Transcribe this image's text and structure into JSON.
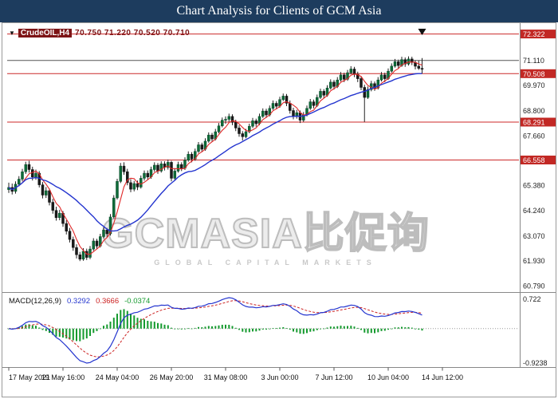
{
  "title_bar": {
    "title": "Chart Analysis for Clients of GCM Asia"
  },
  "chart_header": {
    "symbol": "CrudeOIL,H4",
    "ohlc": "70.750 71.220 70.520 70.710"
  },
  "watermark": {
    "text": "GCMASIA比促询",
    "subtext": "GLOBAL CAPITAL MARKETS"
  },
  "macd_panel": {
    "label": "MACD(12,26,9)",
    "values": [
      "0.3292",
      "0.3666",
      "-0.0374"
    ],
    "scale_top": "0.722",
    "scale_bottom": "-0.9238"
  },
  "chart_data": {
    "type": "candlestick",
    "symbol": "CrudeOIL",
    "timeframe": "H4",
    "y_range": [
      60.55,
      72.6
    ],
    "y_ticks": [
      71.11,
      69.97,
      68.8,
      67.66,
      65.38,
      64.24,
      63.07,
      61.93,
      60.79
    ],
    "resistance_support_levels": [
      72.322,
      70.508,
      68.291,
      66.558
    ],
    "gray_level": 71.11,
    "x_ticks": [
      {
        "i": 0,
        "label": "17 May 2021"
      },
      {
        "i": 16,
        "label": "19 May 16:00"
      },
      {
        "i": 32,
        "label": "24 May 04:00"
      },
      {
        "i": 48,
        "label": "26 May 20:00"
      },
      {
        "i": 64,
        "label": "31 May 08:00"
      },
      {
        "i": 80,
        "label": "3 Jun 00:00"
      },
      {
        "i": 96,
        "label": "7 Jun 12:00"
      },
      {
        "i": 112,
        "label": "10 Jun 04:00"
      },
      {
        "i": 128,
        "label": "14 Jun 12:00"
      }
    ],
    "candles": [
      [
        65.2,
        65.52,
        65.05,
        65.3
      ],
      [
        65.3,
        65.48,
        64.98,
        65.12
      ],
      [
        65.12,
        65.58,
        65.02,
        65.45
      ],
      [
        65.45,
        65.82,
        65.35,
        65.68
      ],
      [
        65.68,
        66.15,
        65.58,
        66.02
      ],
      [
        66.02,
        66.48,
        65.92,
        66.35
      ],
      [
        66.35,
        66.52,
        65.98,
        66.12
      ],
      [
        66.12,
        66.25,
        65.62,
        65.78
      ],
      [
        65.78,
        66.12,
        65.65,
        65.95
      ],
      [
        65.95,
        66.05,
        65.3,
        65.42
      ],
      [
        65.42,
        65.55,
        64.8,
        64.95
      ],
      [
        64.95,
        65.32,
        64.82,
        65.15
      ],
      [
        65.15,
        65.25,
        64.48,
        64.62
      ],
      [
        64.62,
        64.78,
        64.1,
        64.25
      ],
      [
        64.25,
        64.42,
        63.78,
        63.92
      ],
      [
        63.92,
        64.28,
        63.8,
        64.12
      ],
      [
        64.12,
        64.22,
        63.5,
        63.65
      ],
      [
        63.65,
        63.8,
        63.15,
        63.3
      ],
      [
        63.3,
        63.45,
        62.78,
        62.92
      ],
      [
        62.92,
        63.05,
        62.4,
        62.55
      ],
      [
        62.55,
        62.7,
        62.05,
        62.22
      ],
      [
        62.22,
        62.35,
        61.93,
        62.02
      ],
      [
        62.02,
        62.52,
        61.95,
        62.38
      ],
      [
        62.38,
        62.5,
        61.98,
        62.1
      ],
      [
        62.1,
        62.62,
        62.02,
        62.48
      ],
      [
        62.48,
        62.98,
        62.4,
        62.85
      ],
      [
        62.85,
        62.95,
        62.48,
        62.62
      ],
      [
        62.62,
        63.18,
        62.55,
        63.05
      ],
      [
        63.05,
        63.48,
        62.98,
        63.35
      ],
      [
        63.35,
        63.45,
        63.02,
        63.18
      ],
      [
        63.18,
        64.08,
        63.1,
        63.95
      ],
      [
        63.95,
        64.95,
        63.88,
        64.82
      ],
      [
        64.82,
        65.7,
        64.75,
        65.58
      ],
      [
        65.58,
        66.42,
        65.5,
        66.28
      ],
      [
        66.28,
        66.45,
        65.88,
        66.02
      ],
      [
        66.02,
        66.15,
        65.4,
        65.52
      ],
      [
        65.52,
        65.68,
        65.08,
        65.22
      ],
      [
        65.22,
        65.6,
        65.12,
        65.48
      ],
      [
        65.48,
        65.62,
        65.18,
        65.32
      ],
      [
        65.32,
        65.85,
        65.25,
        65.72
      ],
      [
        65.72,
        66.08,
        65.62,
        65.95
      ],
      [
        65.95,
        66.08,
        65.65,
        65.78
      ],
      [
        65.78,
        66.25,
        65.7,
        66.12
      ],
      [
        66.12,
        66.45,
        66.02,
        66.32
      ],
      [
        66.32,
        66.42,
        65.92,
        66.05
      ],
      [
        66.05,
        66.5,
        65.98,
        66.38
      ],
      [
        66.38,
        66.5,
        66.08,
        66.22
      ],
      [
        66.22,
        66.58,
        66.12,
        66.45
      ],
      [
        66.45,
        66.52,
        65.58,
        65.72
      ],
      [
        65.72,
        66.18,
        65.62,
        66.05
      ],
      [
        66.05,
        66.48,
        65.98,
        66.35
      ],
      [
        66.35,
        66.45,
        66.05,
        66.18
      ],
      [
        66.18,
        66.68,
        66.1,
        66.55
      ],
      [
        66.55,
        66.95,
        66.48,
        66.82
      ],
      [
        66.82,
        66.92,
        66.45,
        66.6
      ],
      [
        66.6,
        67.08,
        66.52,
        66.95
      ],
      [
        66.95,
        67.38,
        66.88,
        67.25
      ],
      [
        67.25,
        67.35,
        66.92,
        67.05
      ],
      [
        67.05,
        67.55,
        66.98,
        67.42
      ],
      [
        67.42,
        67.82,
        67.35,
        67.7
      ],
      [
        67.7,
        67.8,
        67.38,
        67.52
      ],
      [
        67.52,
        67.98,
        67.45,
        67.85
      ],
      [
        67.85,
        68.25,
        67.78,
        68.12
      ],
      [
        68.12,
        68.5,
        68.05,
        68.38
      ],
      [
        68.38,
        68.55,
        68.22,
        68.42
      ],
      [
        68.42,
        68.68,
        68.3,
        68.55
      ],
      [
        68.55,
        68.65,
        68.15,
        68.28
      ],
      [
        68.28,
        68.4,
        67.88,
        68.02
      ],
      [
        68.02,
        68.15,
        67.62,
        67.76
      ],
      [
        67.76,
        67.88,
        67.45,
        67.62
      ],
      [
        67.62,
        67.98,
        67.55,
        67.85
      ],
      [
        67.85,
        68.22,
        67.78,
        68.1
      ],
      [
        68.1,
        68.48,
        68.02,
        68.35
      ],
      [
        68.35,
        68.45,
        68.08,
        68.22
      ],
      [
        68.22,
        68.68,
        68.15,
        68.55
      ],
      [
        68.55,
        68.92,
        68.48,
        68.8
      ],
      [
        68.8,
        68.9,
        68.48,
        68.62
      ],
      [
        68.62,
        69.05,
        68.55,
        68.92
      ],
      [
        68.92,
        69.28,
        68.85,
        69.15
      ],
      [
        69.15,
        69.25,
        68.88,
        69.02
      ],
      [
        69.02,
        69.45,
        68.95,
        69.32
      ],
      [
        69.32,
        69.6,
        69.25,
        69.48
      ],
      [
        69.48,
        69.58,
        69.02,
        69.15
      ],
      [
        69.15,
        69.28,
        68.68,
        68.82
      ],
      [
        68.82,
        68.95,
        68.42,
        68.55
      ],
      [
        68.55,
        68.85,
        68.45,
        68.72
      ],
      [
        68.72,
        68.82,
        68.25,
        68.38
      ],
      [
        68.38,
        68.75,
        68.3,
        68.62
      ],
      [
        68.62,
        69.05,
        68.55,
        68.92
      ],
      [
        68.92,
        69.35,
        68.85,
        69.22
      ],
      [
        69.22,
        69.32,
        68.92,
        69.05
      ],
      [
        69.05,
        69.55,
        68.98,
        69.42
      ],
      [
        69.42,
        69.82,
        69.35,
        69.7
      ],
      [
        69.7,
        69.8,
        69.38,
        69.52
      ],
      [
        69.52,
        69.98,
        69.45,
        69.85
      ],
      [
        69.85,
        70.25,
        69.78,
        70.12
      ],
      [
        70.12,
        70.22,
        69.78,
        69.92
      ],
      [
        69.92,
        70.35,
        69.85,
        70.22
      ],
      [
        70.22,
        70.58,
        70.15,
        70.45
      ],
      [
        70.45,
        70.55,
        70.12,
        70.25
      ],
      [
        70.25,
        70.68,
        70.18,
        70.55
      ],
      [
        70.55,
        70.85,
        70.48,
        70.72
      ],
      [
        70.72,
        70.82,
        70.35,
        70.48
      ],
      [
        70.48,
        70.6,
        70.12,
        70.28
      ],
      [
        70.28,
        70.4,
        69.75,
        69.88
      ],
      [
        69.88,
        70.0,
        68.3,
        69.42
      ],
      [
        69.42,
        69.92,
        69.35,
        69.78
      ],
      [
        69.78,
        70.18,
        69.7,
        70.05
      ],
      [
        70.05,
        70.15,
        69.72,
        69.85
      ],
      [
        69.85,
        70.35,
        69.78,
        70.22
      ],
      [
        70.22,
        70.58,
        70.15,
        70.45
      ],
      [
        70.45,
        70.55,
        70.12,
        70.28
      ],
      [
        70.28,
        70.75,
        70.22,
        70.62
      ],
      [
        70.62,
        70.98,
        70.55,
        70.85
      ],
      [
        70.85,
        71.18,
        70.78,
        71.05
      ],
      [
        71.05,
        71.15,
        70.75,
        70.88
      ],
      [
        70.88,
        71.28,
        70.82,
        71.15
      ],
      [
        71.15,
        71.25,
        70.82,
        70.95
      ],
      [
        70.95,
        71.3,
        70.88,
        71.18
      ],
      [
        71.18,
        71.28,
        70.9,
        71.02
      ],
      [
        71.02,
        71.12,
        70.7,
        70.85
      ],
      [
        70.85,
        71.1,
        70.68,
        70.75
      ],
      [
        70.75,
        71.22,
        70.52,
        70.71
      ]
    ],
    "overlays": [
      {
        "name": "ma-fast",
        "type": "sma",
        "period": 5,
        "color": "#e02828"
      },
      {
        "name": "ma-slow",
        "type": "sma",
        "period": 21,
        "color": "#2435cf"
      }
    ],
    "indicator": {
      "name": "MACD",
      "fast": 12,
      "slow": 26,
      "signal": 9,
      "scale": [
        -0.9238,
        0.722
      ],
      "colors": {
        "macd": "#2435cf",
        "signal": "#cc2222",
        "histogram": "#149a2e"
      }
    },
    "colors": {
      "bull": "#0e6b38",
      "bear": "#1a1a1a",
      "wick": "#222222",
      "level_line": "#cc2a2a",
      "badge_bg": "#c22824",
      "badge_text": "#ffffff",
      "gray_line": "#555555"
    },
    "marker": {
      "type": "down-arrow",
      "i": 122,
      "color": "#111111"
    }
  }
}
